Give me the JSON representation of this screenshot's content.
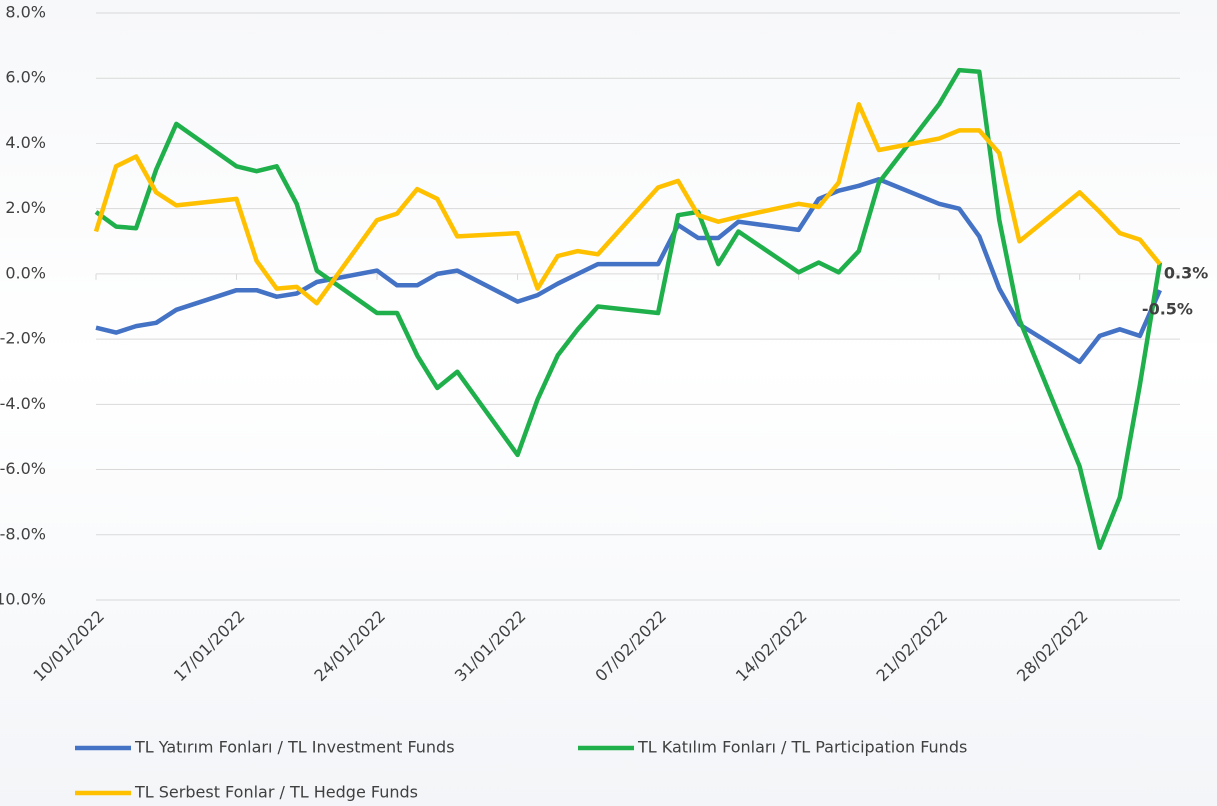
{
  "chart_data": {
    "type": "line",
    "x": [
      "10/01/2022",
      "11/01/2022",
      "12/01/2022",
      "13/01/2022",
      "14/01/2022",
      "17/01/2022",
      "18/01/2022",
      "19/01/2022",
      "20/01/2022",
      "21/01/2022",
      "24/01/2022",
      "25/01/2022",
      "26/01/2022",
      "27/01/2022",
      "28/01/2022",
      "31/01/2022",
      "01/02/2022",
      "02/02/2022",
      "03/02/2022",
      "04/02/2022",
      "07/02/2022",
      "08/02/2022",
      "09/02/2022",
      "10/02/2022",
      "11/02/2022",
      "14/02/2022",
      "15/02/2022",
      "16/02/2022",
      "17/02/2022",
      "18/02/2022",
      "21/02/2022",
      "22/02/2022",
      "23/02/2022",
      "24/02/2022",
      "25/02/2022",
      "28/02/2022",
      "01/03/2022",
      "02/03/2022",
      "03/03/2022",
      "04/03/2022"
    ],
    "series": [
      {
        "name": "TL Yatırım Fonları / TL Investment Funds",
        "color": "#4472c4",
        "values": [
          -1.65,
          -1.8,
          -1.6,
          -1.5,
          -1.1,
          -0.5,
          -0.5,
          -0.7,
          -0.6,
          -0.25,
          0.1,
          -0.35,
          -0.35,
          0.0,
          0.1,
          -0.85,
          -0.65,
          -0.3,
          0.0,
          0.3,
          0.3,
          1.5,
          1.1,
          1.1,
          1.6,
          1.35,
          2.3,
          2.55,
          2.7,
          2.9,
          2.15,
          2.0,
          1.15,
          -0.45,
          -1.55,
          -2.7,
          -1.9,
          -1.7,
          -1.9,
          -0.5
        ],
        "value_labels": [
          null,
          null,
          null,
          null,
          null,
          null,
          null,
          null,
          null,
          null,
          null,
          null,
          null,
          null,
          null,
          null,
          null,
          null,
          null,
          null,
          null,
          null,
          null,
          null,
          null,
          null,
          null,
          null,
          null,
          null,
          null,
          null,
          null,
          null,
          null,
          null,
          null,
          null,
          null,
          "-0.5%"
        ]
      },
      {
        "name": "TL Katılım Fonları / TL Participation Funds",
        "color": "#1fb04b",
        "values": [
          1.9,
          1.45,
          1.4,
          3.2,
          4.6,
          3.3,
          3.15,
          3.3,
          2.15,
          0.1,
          -1.2,
          -1.2,
          -2.5,
          -3.5,
          -3.0,
          -5.55,
          -3.85,
          -2.5,
          -1.7,
          -1.0,
          -1.2,
          1.8,
          1.9,
          0.3,
          1.3,
          0.05,
          0.35,
          0.05,
          0.7,
          2.8,
          5.2,
          6.25,
          6.2,
          1.65,
          -1.4,
          -5.9,
          -8.4,
          -6.85,
          -3.4,
          0.35
        ]
      },
      {
        "name": "TL Serbest Fonlar / TL Hedge Funds",
        "color": "#ffc000",
        "values": [
          1.3,
          3.3,
          3.6,
          2.5,
          2.1,
          2.3,
          0.4,
          -0.45,
          -0.4,
          -0.9,
          1.65,
          1.85,
          2.6,
          2.3,
          1.15,
          1.25,
          -0.45,
          0.55,
          0.7,
          0.6,
          2.65,
          2.85,
          1.8,
          1.6,
          1.75,
          2.15,
          2.05,
          2.8,
          5.2,
          3.8,
          4.15,
          4.4,
          4.4,
          3.7,
          1.0,
          2.5,
          1.9,
          1.25,
          1.05,
          0.3
        ],
        "value_labels": [
          null,
          null,
          null,
          null,
          null,
          null,
          null,
          null,
          null,
          null,
          null,
          null,
          null,
          null,
          null,
          null,
          null,
          null,
          null,
          null,
          null,
          null,
          null,
          null,
          null,
          null,
          null,
          null,
          null,
          null,
          null,
          null,
          null,
          null,
          null,
          null,
          null,
          null,
          null,
          "0.3%"
        ]
      }
    ],
    "xlim": [
      "10/01/2022",
      "05/03/2022"
    ],
    "xticks": [
      "10/01/2022",
      "17/01/2022",
      "24/01/2022",
      "31/01/2022",
      "07/02/2022",
      "14/02/2022",
      "21/02/2022",
      "28/02/2022"
    ],
    "ylim": [
      -10,
      8
    ],
    "yticks": [
      {
        "value": -10,
        "label": "-10.0%"
      },
      {
        "value": -8,
        "label": "-8.0%"
      },
      {
        "value": -6,
        "label": "-6.0%"
      },
      {
        "value": -4,
        "label": "-4.0%"
      },
      {
        "value": -2,
        "label": "-2.0%"
      },
      {
        "value": 0,
        "label": "0.0%"
      },
      {
        "value": 2,
        "label": "2.0%"
      },
      {
        "value": 4,
        "label": "4.0%"
      },
      {
        "value": 6,
        "label": "6.0%"
      },
      {
        "value": 8,
        "label": "8.0%"
      }
    ],
    "grid": true,
    "legend": "bottom"
  }
}
